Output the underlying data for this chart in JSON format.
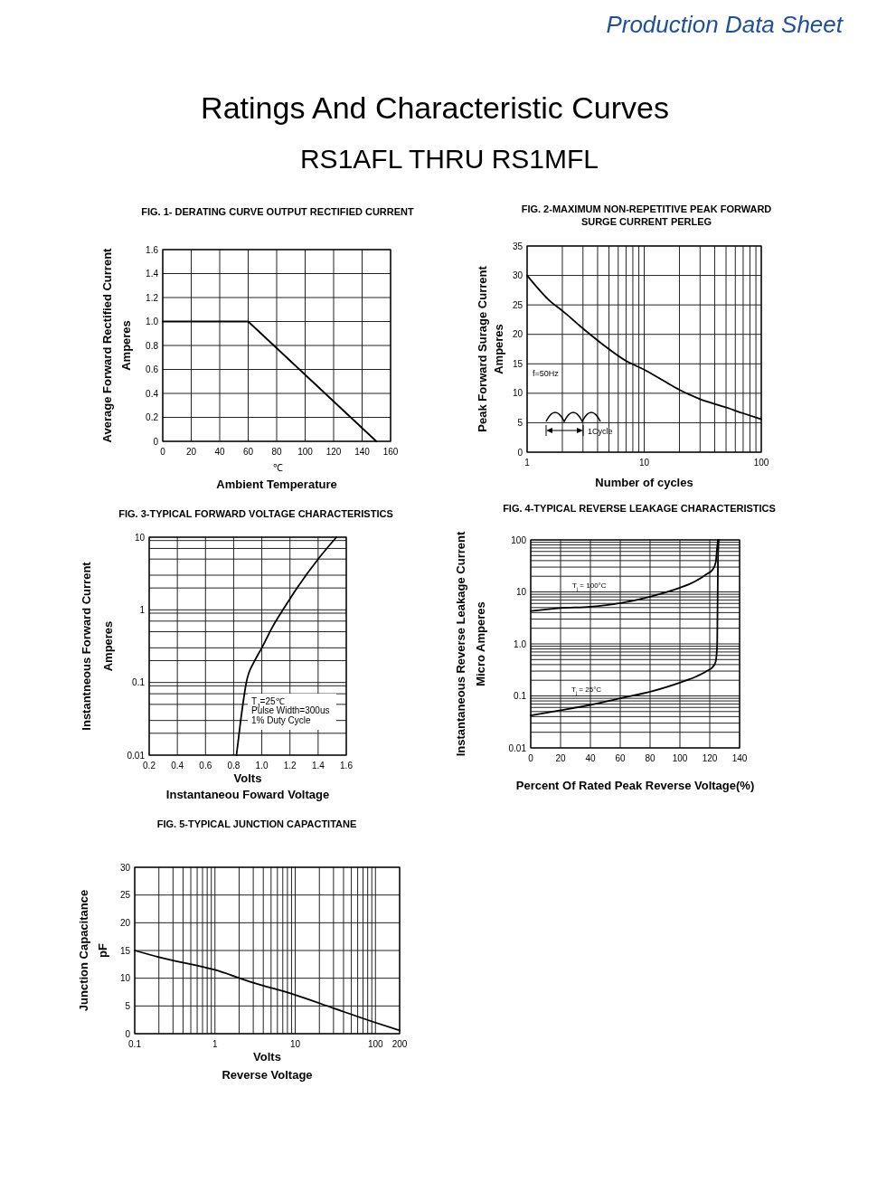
{
  "chart_data": [
    {
      "type": "other",
      "title": "Ratings And  Characteristic Curves",
      "subtitle": "RS1AFL THRU RS1MFL",
      "annotations": [
        "Production Data Sheet"
      ]
    },
    {
      "type": "line",
      "title": "FIG. 1- DERATING CURVE OUTPUT RECTIFIED CURRENT",
      "xlabel": "Ambient Temperature",
      "ylabel": "Average Forward Rectified Current\nAmperes",
      "annotations": [
        "℃"
      ],
      "xlim": [
        0,
        160
      ],
      "ylim": [
        0,
        1.6
      ],
      "xticks": [
        0,
        20,
        40,
        60,
        80,
        100,
        120,
        140,
        160
      ],
      "yticks": [
        0,
        0.2,
        0.4,
        0.6,
        0.8,
        {
          "value": 1,
          "label": "1.0"
        },
        1.2,
        1.4,
        1.6
      ],
      "grid": true,
      "series": [
        {
          "color": "#000000",
          "x": [
            0,
            60,
            150
          ],
          "values": [
            1,
            1,
            0
          ]
        }
      ]
    },
    {
      "type": "line",
      "title": "FIG. 2-MAXIMUM NON-REPETITIVE PEAK FORWARD\nSURGE CURRENT PERLEG",
      "xlabel": "Number of cycles",
      "ylabel": "Peak Forward Surage Current\nAmperes",
      "annotations": [
        "f=50Hz",
        "1Cycle"
      ],
      "log": "x",
      "xlim": [
        1,
        100
      ],
      "ylim": [
        0,
        35
      ],
      "xticks": [
        1,
        {
          "value": 2,
          "label": null
        },
        {
          "value": 3,
          "label": null
        },
        {
          "value": 4,
          "label": null
        },
        {
          "value": 5,
          "label": null
        },
        {
          "value": 6,
          "label": null
        },
        {
          "value": 7,
          "label": null
        },
        {
          "value": 8,
          "label": null
        },
        {
          "value": 9,
          "label": null
        },
        10,
        {
          "value": 20,
          "label": null
        },
        {
          "value": 30,
          "label": null
        },
        {
          "value": 40,
          "label": null
        },
        {
          "value": 50,
          "label": null
        },
        {
          "value": 60,
          "label": null
        },
        {
          "value": 70,
          "label": null
        },
        {
          "value": 80,
          "label": null
        },
        {
          "value": 90,
          "label": null
        },
        100
      ],
      "yticks": [
        0,
        5,
        10,
        15,
        20,
        25,
        30,
        35
      ],
      "grid": true,
      "series": [
        {
          "color": "#000000",
          "x": [
            1,
            1.6,
            2,
            3,
            5,
            7,
            10,
            15,
            20,
            30,
            50,
            70,
            100
          ],
          "values": [
            30,
            25.5,
            24,
            21,
            17.5,
            15.5,
            14,
            12,
            10.6,
            9,
            7.6,
            6.6,
            5.6
          ]
        }
      ]
    },
    {
      "type": "line",
      "title": "FIG. 3-TYPICAL FORWARD VOLTAGE CHARACTERISTICS",
      "xlabel": "Volts\nInstantaneou Foward Voltage",
      "ylabel": "Instantneous Forward Current\nAmperes",
      "annotations": [
        "T$_{J}$=25℃",
        "Pulse Width=300us",
        "1% Duty Cycle"
      ],
      "log": "y",
      "xlim": [
        0.2,
        1.6
      ],
      "ylim": [
        0.01,
        10
      ],
      "xticks": [
        0.2,
        0.4,
        0.6,
        0.8,
        {
          "value": 1,
          "label": "1.0"
        },
        1.2,
        1.4,
        1.6
      ],
      "yticks": [
        0.01,
        {
          "value": 0.02,
          "label": null
        },
        {
          "value": 0.03,
          "label": null
        },
        {
          "value": 0.05,
          "label": null
        },
        {
          "value": 0.07,
          "label": null
        },
        {
          "value": 0.09,
          "label": null
        },
        0.1,
        {
          "value": 0.2,
          "label": null
        },
        {
          "value": 0.3,
          "label": null
        },
        {
          "value": 0.5,
          "label": null
        },
        {
          "value": 0.7,
          "label": null
        },
        {
          "value": 0.9,
          "label": null
        },
        1,
        {
          "value": 2,
          "label": null
        },
        {
          "value": 3,
          "label": null
        },
        {
          "value": 5,
          "label": null
        },
        {
          "value": 7,
          "label": null
        },
        {
          "value": 9,
          "label": null
        },
        10
      ],
      "grid": true,
      "series": [
        {
          "color": "#000000",
          "x": [
            0.82,
            0.85,
            0.89,
            0.95,
            1.0,
            1.08,
            1.15,
            1.25,
            1.4,
            1.53
          ],
          "values": [
            0.01,
            0.03,
            0.1,
            0.2,
            0.3,
            0.6,
            1,
            2,
            5,
            10
          ]
        }
      ]
    },
    {
      "type": "line",
      "title": "FIG. 4-TYPICAL REVERSE LEAKAGE  CHARACTERISTICS",
      "xlabel": "Percent Of Rated Peak Reverse Voltage(%)",
      "ylabel": "Instantaneous Reverse Leakage Current\nMicro Amperes",
      "log": "y",
      "xlim": [
        0,
        140
      ],
      "ylim": [
        0.01,
        100
      ],
      "xticks": [
        0,
        20,
        40,
        60,
        80,
        100,
        120,
        140
      ],
      "yticks": [
        0.01,
        {
          "value": 0.02,
          "label": null
        },
        {
          "value": 0.03,
          "label": null
        },
        {
          "value": 0.04,
          "label": null
        },
        {
          "value": 0.05,
          "label": null
        },
        {
          "value": 0.06,
          "label": null
        },
        {
          "value": 0.07,
          "label": null
        },
        {
          "value": 0.08,
          "label": null
        },
        {
          "value": 0.09,
          "label": null
        },
        0.1,
        {
          "value": 0.2,
          "label": null
        },
        {
          "value": 0.3,
          "label": null
        },
        {
          "value": 0.4,
          "label": null
        },
        {
          "value": 0.5,
          "label": null
        },
        {
          "value": 0.6,
          "label": null
        },
        {
          "value": 0.7,
          "label": null
        },
        {
          "value": 0.8,
          "label": null
        },
        {
          "value": 0.9,
          "label": null
        },
        {
          "value": 1,
          "label": "1.0"
        },
        {
          "value": 2,
          "label": null
        },
        {
          "value": 3,
          "label": null
        },
        {
          "value": 4,
          "label": null
        },
        {
          "value": 5,
          "label": null
        },
        {
          "value": 6,
          "label": null
        },
        {
          "value": 7,
          "label": null
        },
        {
          "value": 8,
          "label": null
        },
        {
          "value": 9,
          "label": null
        },
        10,
        {
          "value": 20,
          "label": null
        },
        {
          "value": 30,
          "label": null
        },
        {
          "value": 40,
          "label": null
        },
        {
          "value": 50,
          "label": null
        },
        {
          "value": 60,
          "label": null
        },
        {
          "value": 70,
          "label": null
        },
        {
          "value": 80,
          "label": null
        },
        {
          "value": 90,
          "label": null
        },
        100
      ],
      "grid": true,
      "series": [
        {
          "name": "T$_{j}$ = 100°C",
          "color": "#000000",
          "x": [
            0,
            20,
            40,
            60,
            80,
            100,
            110,
            118,
            122,
            124,
            125,
            125.5
          ],
          "values": [
            4.3,
            4.9,
            5.2,
            6.1,
            8.1,
            12,
            15.8,
            22,
            27,
            37,
            73,
            100
          ]
        },
        {
          "name": "T$_{j}$ = 25°C",
          "color": "#000000",
          "x": [
            0,
            20,
            40,
            60,
            80,
            100,
            110,
            118,
            122,
            124,
            125,
            125.5,
            126
          ],
          "values": [
            0.042,
            0.053,
            0.067,
            0.09,
            0.12,
            0.18,
            0.23,
            0.3,
            0.36,
            0.46,
            1,
            37,
            100
          ]
        }
      ]
    },
    {
      "type": "line",
      "title": "FIG. 5-TYPICAL JUNCTION CAPACTITANE",
      "xlabel": "Volts\nReverse Voltage",
      "ylabel": "Junction Capacitance\npF",
      "log": "x",
      "xlim": [
        0.1,
        200
      ],
      "ylim": [
        0,
        30
      ],
      "xticks": [
        0.1,
        {
          "value": 0.2,
          "label": null
        },
        {
          "value": 0.3,
          "label": null
        },
        {
          "value": 0.4,
          "label": null
        },
        {
          "value": 0.5,
          "label": null
        },
        {
          "value": 0.6,
          "label": null
        },
        {
          "value": 0.7,
          "label": null
        },
        {
          "value": 0.8,
          "label": null
        },
        {
          "value": 0.9,
          "label": null
        },
        1,
        {
          "value": 2,
          "label": null
        },
        {
          "value": 3,
          "label": null
        },
        {
          "value": 4,
          "label": null
        },
        {
          "value": 5,
          "label": null
        },
        {
          "value": 6,
          "label": null
        },
        {
          "value": 7,
          "label": null
        },
        {
          "value": 8,
          "label": null
        },
        {
          "value": 9,
          "label": null
        },
        10,
        {
          "value": 20,
          "label": null
        },
        {
          "value": 30,
          "label": null
        },
        {
          "value": 40,
          "label": null
        },
        {
          "value": 50,
          "label": null
        },
        {
          "value": 60,
          "label": null
        },
        {
          "value": 70,
          "label": null
        },
        {
          "value": 80,
          "label": null
        },
        {
          "value": 90,
          "label": null
        },
        100,
        200
      ],
      "yticks": [
        0,
        5,
        10,
        15,
        20,
        25,
        30
      ],
      "grid": true,
      "series": [
        {
          "color": "#000000",
          "x": [
            0.1,
            0.2,
            1,
            3,
            10,
            30,
            100,
            200
          ],
          "values": [
            15,
            13.8,
            11.5,
            9.2,
            7,
            4.6,
            2,
            0.6
          ]
        }
      ]
    }
  ]
}
